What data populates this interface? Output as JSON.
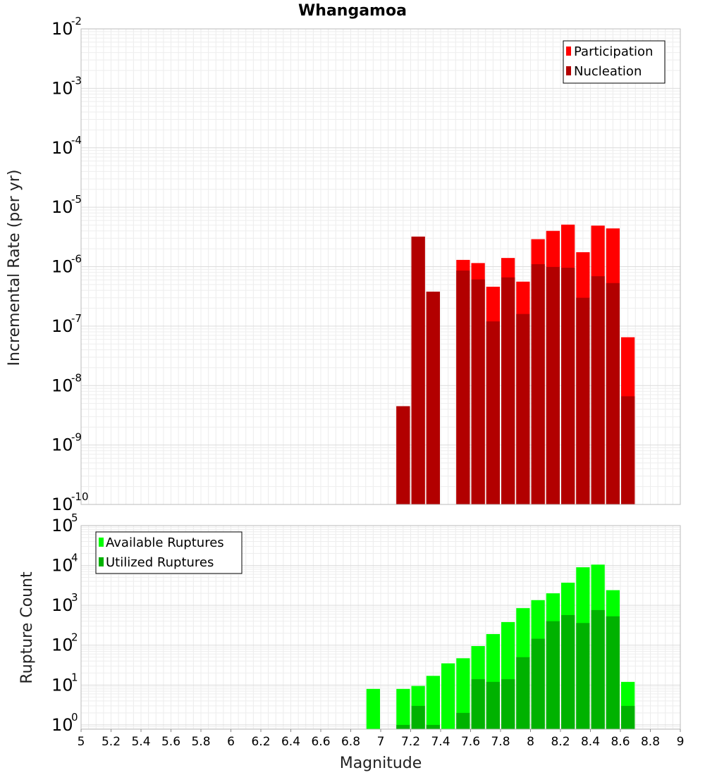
{
  "chart_data": [
    {
      "type": "bar",
      "title": "Whangamoa",
      "xlabel": "",
      "ylabel": "Incremental Rate (per yr)",
      "yscale": "log",
      "ylim": [
        1e-10,
        0.01
      ],
      "xlim": [
        5,
        9
      ],
      "grid": true,
      "legend_position": "top-right",
      "y_ticks": [
        {
          "base": "10",
          "exp": "-2",
          "value": 0.01
        },
        {
          "base": "10",
          "exp": "-3",
          "value": 0.001
        },
        {
          "base": "10",
          "exp": "-4",
          "value": 0.0001
        },
        {
          "base": "10",
          "exp": "-5",
          "value": 1e-05
        },
        {
          "base": "10",
          "exp": "-6",
          "value": 1e-06
        },
        {
          "base": "10",
          "exp": "-7",
          "value": 1e-07
        },
        {
          "base": "10",
          "exp": "-8",
          "value": 1e-08
        },
        {
          "base": "10",
          "exp": "-9",
          "value": 1e-09
        },
        {
          "base": "10",
          "exp": "-10",
          "value": 1e-10
        }
      ],
      "x": [
        7.15,
        7.25,
        7.35,
        7.55,
        7.65,
        7.75,
        7.85,
        7.95,
        8.05,
        8.15,
        8.25,
        8.35,
        8.45,
        8.55,
        8.65
      ],
      "series": [
        {
          "name": "Participation",
          "color": "#ff0000",
          "values": [
            4.5e-09,
            3.2e-06,
            3.8e-07,
            1.3e-06,
            1.15e-06,
            4.6e-07,
            1.4e-06,
            5.6e-07,
            2.9e-06,
            4e-06,
            5.1e-06,
            1.75e-06,
            4.9e-06,
            4.4e-06,
            6.5e-08
          ]
        },
        {
          "name": "Nucleation",
          "color": "#b20000",
          "values": [
            4.5e-09,
            3.2e-06,
            3.8e-07,
            8.6e-07,
            6.1e-07,
            1.2e-07,
            6.6e-07,
            1.6e-07,
            1.1e-06,
            9.9e-07,
            9.6e-07,
            3e-07,
            6.9e-07,
            5.3e-07,
            6.6e-09
          ]
        }
      ]
    },
    {
      "type": "bar",
      "title": "",
      "xlabel": "Magnitude",
      "ylabel": "Rupture Count",
      "yscale": "log",
      "ylim": [
        0.78,
        100000
      ],
      "xlim": [
        5,
        9
      ],
      "grid": true,
      "legend_position": "top-left",
      "y_ticks": [
        {
          "base": "10",
          "exp": "5",
          "value": 100000
        },
        {
          "base": "10",
          "exp": "4",
          "value": 10000
        },
        {
          "base": "10",
          "exp": "3",
          "value": 1000
        },
        {
          "base": "10",
          "exp": "2",
          "value": 100
        },
        {
          "base": "10",
          "exp": "1",
          "value": 10
        },
        {
          "base": "10",
          "exp": "0",
          "value": 1
        }
      ],
      "x_ticks": [
        "5",
        "5.2",
        "5.4",
        "5.6",
        "5.8",
        "6",
        "6.2",
        "6.4",
        "6.6",
        "6.8",
        "7",
        "7.2",
        "7.4",
        "7.6",
        "7.8",
        "8",
        "8.2",
        "8.4",
        "8.6",
        "8.8",
        "9"
      ],
      "x": [
        6.95,
        7.15,
        7.25,
        7.35,
        7.45,
        7.55,
        7.65,
        7.75,
        7.85,
        7.95,
        8.05,
        8.15,
        8.25,
        8.35,
        8.45,
        8.55,
        8.65
      ],
      "series": [
        {
          "name": "Available Ruptures",
          "color": "#00ff00",
          "values": [
            8,
            8,
            9.5,
            17,
            35,
            47,
            95,
            190,
            380,
            850,
            1350,
            2000,
            3700,
            9000,
            10500,
            2400,
            12
          ]
        },
        {
          "name": "Utilized Ruptures",
          "color": "#00b200",
          "values": [
            0,
            1,
            3,
            1,
            0,
            2,
            14,
            12,
            14,
            50,
            145,
            400,
            570,
            360,
            760,
            530,
            3
          ]
        }
      ]
    }
  ]
}
